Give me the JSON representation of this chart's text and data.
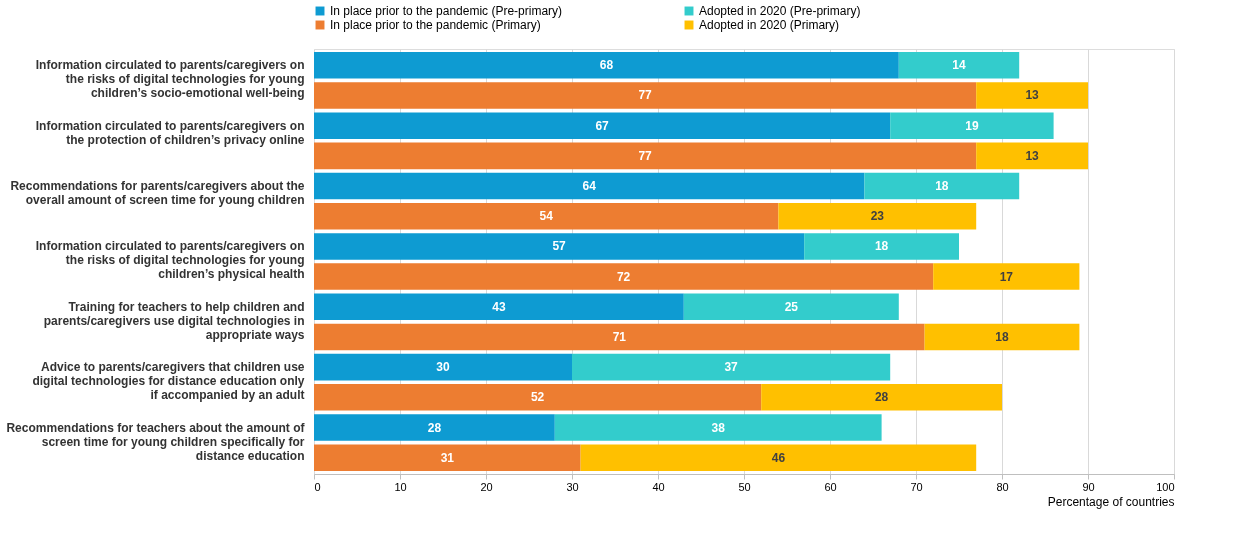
{
  "chart_data": {
    "type": "bar",
    "orientation": "horizontal",
    "stacked": true,
    "categories": [
      "Information circulated to parents/caregivers on the risks of digital technologies for young children’s socio-emotional well-being",
      null,
      "Information circulated to parents/caregivers on the protection of children’s privacy online",
      null,
      "Recommendations for parents/caregivers about the overall amount of screen time for young children",
      null,
      "Information circulated to parents/caregivers on the risks of digital technologies for young children’s physical health",
      null,
      "Training for teachers to help children and parents/caregivers use digital technologies in appropriate ways",
      null,
      "Advice to parents/caregivers that children use digital technologies for distance education only if accompanied by an adult",
      null,
      "Recommendations for teachers about the amount of screen time for young children specifically for distance education",
      null
    ],
    "series": [
      {
        "name": "In place prior to the pandemic (Pre-primary)",
        "color": "#0e9bd2",
        "values": [
          68,
          null,
          67,
          null,
          64,
          null,
          57,
          null,
          43,
          null,
          30,
          null,
          28,
          null
        ]
      },
      {
        "name": "Adopted in 2020  (Pre-primary)",
        "color": "#33cccc",
        "values": [
          14,
          null,
          19,
          null,
          18,
          null,
          18,
          null,
          25,
          null,
          37,
          null,
          38,
          null
        ]
      },
      {
        "name": "In place prior to the pandemic (Primary)",
        "color": "#ed7d31",
        "values": [
          null,
          77,
          null,
          77,
          null,
          54,
          null,
          72,
          null,
          71,
          null,
          52,
          null,
          31
        ]
      },
      {
        "name": "Adopted in 2020  (Primary)",
        "color": "#ffc000",
        "values": [
          null,
          13,
          null,
          13,
          null,
          23,
          null,
          17,
          null,
          18,
          null,
          28,
          null,
          46
        ]
      }
    ],
    "xlabel": "Percentage of countries",
    "xlim": [
      0,
      100
    ],
    "xticks": [
      0,
      10,
      20,
      30,
      40,
      50,
      60,
      70,
      80,
      90,
      100
    ],
    "grid": "x",
    "legend": "top",
    "data_labels": true
  }
}
